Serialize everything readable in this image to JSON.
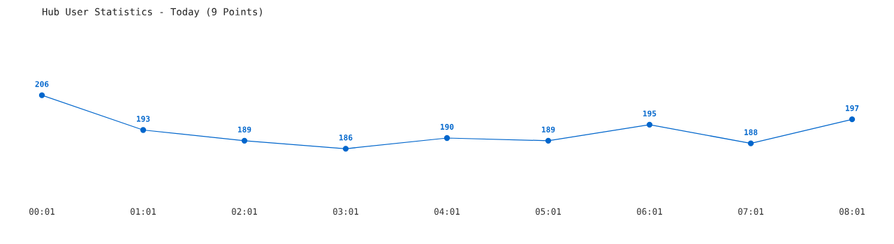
{
  "chart_data": {
    "type": "line",
    "title": "Hub User Statistics - Today (9 Points)",
    "categories": [
      "00:01",
      "01:01",
      "02:01",
      "03:01",
      "04:01",
      "05:01",
      "06:01",
      "07:01",
      "08:01"
    ],
    "series": [
      {
        "color": "#0066cc",
        "values": [
          206,
          193,
          189,
          186,
          190,
          189,
          195,
          188,
          197
        ]
      }
    ],
    "data_labels": true,
    "marker": "circle",
    "line_style": "solid",
    "grid": false,
    "legend": false
  }
}
